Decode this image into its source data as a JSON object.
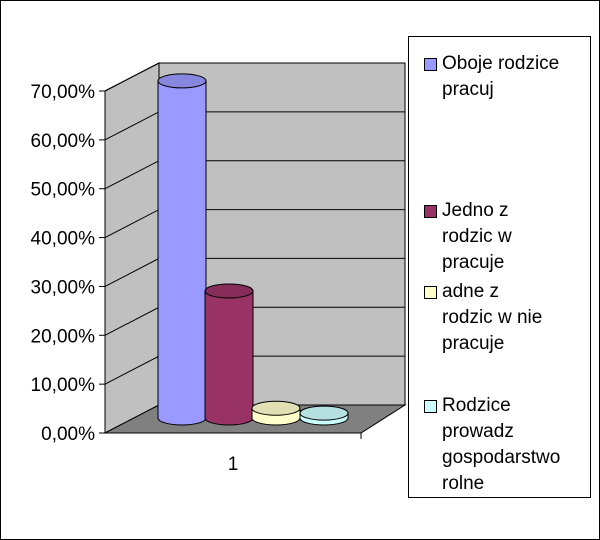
{
  "chart_data": {
    "type": "bar",
    "view": "3d-cylinder",
    "categories": [
      "1"
    ],
    "series": [
      {
        "name": "Oboje rodzice\npracuj",
        "values": [
          0.69
        ],
        "color": "#9999ff"
      },
      {
        "name": "Jedno z\nrodzic  w\npracuje",
        "values": [
          0.26
        ],
        "color": "#993366"
      },
      {
        "name": "  adne z\nrodzic  w nie\npracuje",
        "values": [
          0.02
        ],
        "color": "#ffffcc"
      },
      {
        "name": "Rodzice\nprowadz\ngospodarstwo\nrolne",
        "values": [
          0.01
        ],
        "color": "#ccffff"
      }
    ],
    "ylim": [
      0,
      0.7
    ],
    "yticks": [
      0,
      0.1,
      0.2,
      0.3,
      0.4,
      0.5,
      0.6,
      0.7
    ],
    "ytick_labels": [
      "0,00%",
      "10,00%",
      "20,00%",
      "30,00%",
      "40,00%",
      "50,00%",
      "60,00%",
      "70,00%"
    ],
    "grid": true,
    "legend_position": "right",
    "wall_color": "#c0c0c0",
    "floor_color": "#808080"
  }
}
